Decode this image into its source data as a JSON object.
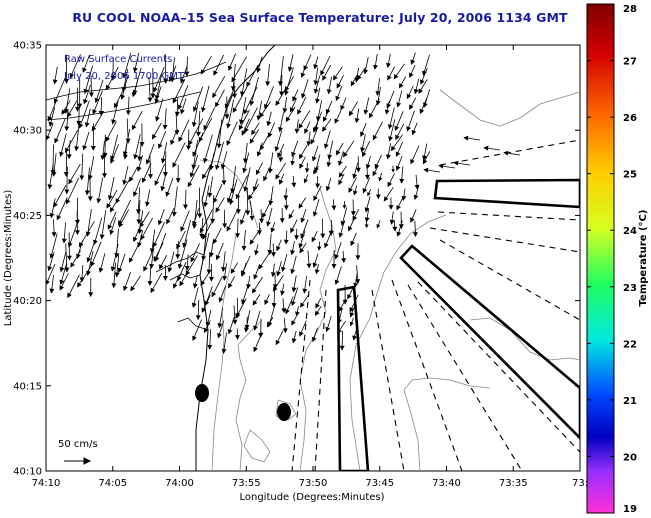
{
  "title": "RU COOL   NOAA–15   Sea Surface Temperature:  July 20, 2006 1134 GMT",
  "annotation": {
    "line1": "Raw Surface Currents",
    "line2": "July 20, 2006 1700 GMT"
  },
  "axes": {
    "xlabel": "Longitude (Degrees:Minutes)",
    "ylabel": "Latitude (Degrees:Minutes)",
    "x_ticks": [
      "74:10",
      "74:05",
      "74:00",
      "73:55",
      "73:50",
      "73:45",
      "73:40",
      "73:35",
      "73:3"
    ],
    "y_ticks": [
      "40:35",
      "40:30",
      "40:25",
      "40:20",
      "40:15",
      "40:10"
    ]
  },
  "scale_label": "50 cm/s",
  "colorbar": {
    "label": "Temperature (°C)",
    "ticks": [
      "28",
      "27",
      "26",
      "25",
      "24",
      "23",
      "22",
      "21",
      "20",
      "19"
    ]
  },
  "colors": {
    "title": "#1a1aa8",
    "annotation": "#1a1aa8",
    "vectors": "#000000",
    "contours": "#888888"
  }
}
